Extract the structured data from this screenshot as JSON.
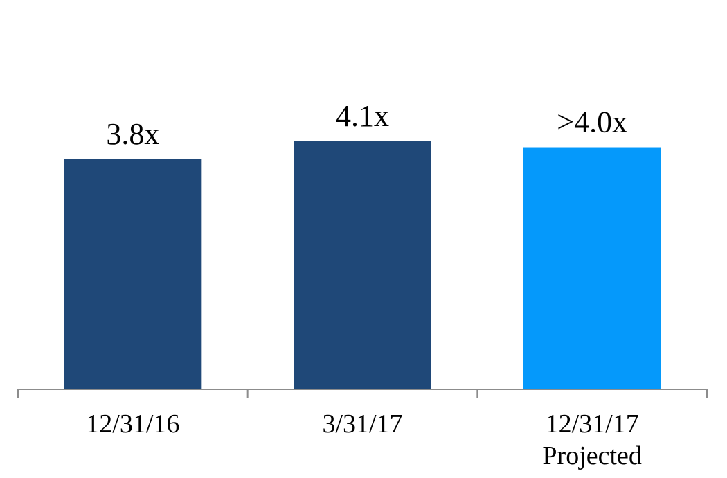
{
  "chart_data": {
    "type": "bar",
    "categories": [
      "12/31/16",
      "3/31/17",
      "12/31/17"
    ],
    "category_sublabels": [
      "",
      "",
      "Projected"
    ],
    "values": [
      3.8,
      4.1,
      4.0
    ],
    "data_labels": [
      "3.8x",
      "4.1x",
      ">4.0x"
    ],
    "colors": [
      "#1f4878",
      "#1f4878",
      "#0599fb"
    ],
    "ylim": [
      0,
      4.5
    ],
    "grid": false,
    "legend": "none",
    "title": "",
    "xlabel": "",
    "ylabel": ""
  }
}
